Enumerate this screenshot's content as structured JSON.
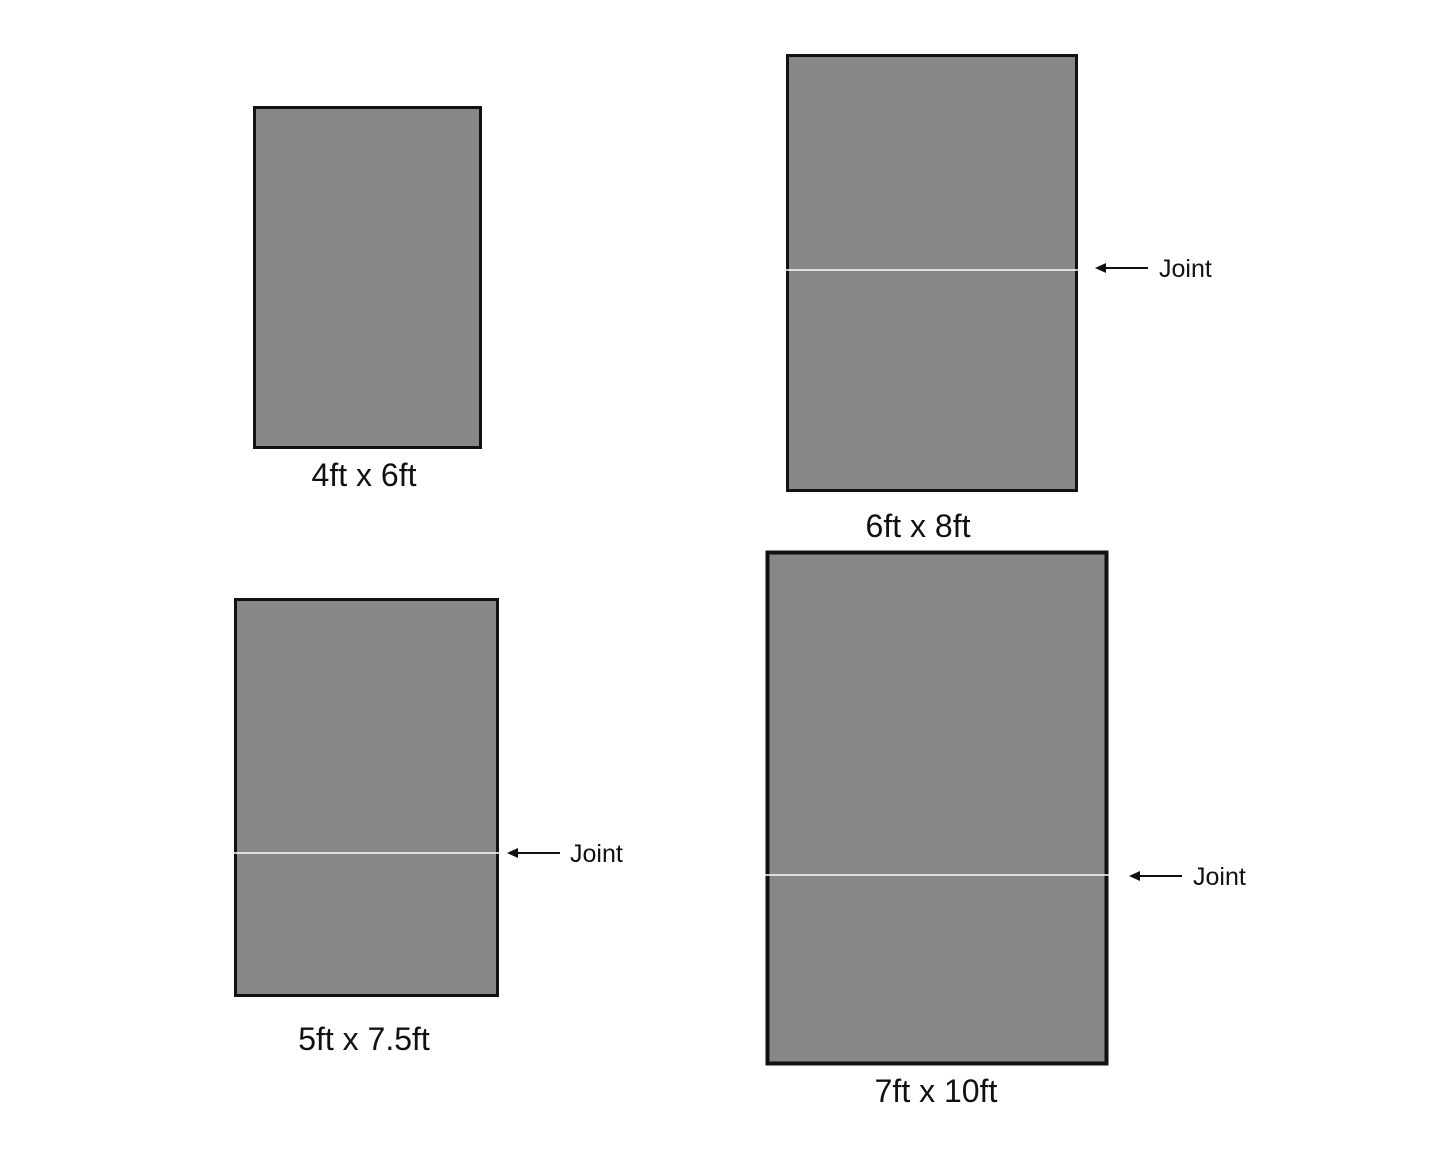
{
  "colors": {
    "panel_fill": "#878787",
    "border": "#111111",
    "joint_line": "#ffffff"
  },
  "panels": [
    {
      "id": "4x6",
      "label": "4ft x 6ft",
      "has_joint": false,
      "joint_label": ""
    },
    {
      "id": "6x8",
      "label": "6ft x 8ft",
      "has_joint": true,
      "joint_label": "Joint"
    },
    {
      "id": "5x7.5",
      "label": "5ft x 7.5ft",
      "has_joint": true,
      "joint_label": "Joint"
    },
    {
      "id": "7x10",
      "label": "7ft x 10ft",
      "has_joint": true,
      "joint_label": "Joint"
    }
  ]
}
